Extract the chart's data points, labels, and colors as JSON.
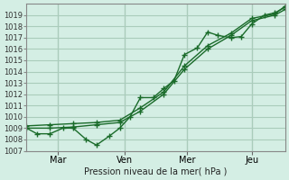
{
  "background_color": "#d4eee4",
  "grid_color": "#aaccbb",
  "line_color": "#1a6b2a",
  "ylabel": "Pression niveau de la mer( hPa )",
  "ylim": [
    1007,
    1020
  ],
  "yticks": [
    1007,
    1008,
    1009,
    1010,
    1011,
    1012,
    1013,
    1014,
    1015,
    1016,
    1017,
    1018,
    1019
  ],
  "xtick_labels": [
    "Mar",
    "Ven",
    "Mer",
    "Jeu"
  ],
  "xtick_positions": [
    0.12,
    0.38,
    0.62,
    0.87
  ],
  "series1_x": [
    0.0,
    0.04,
    0.09,
    0.14,
    0.18,
    0.23,
    0.27,
    0.32,
    0.36,
    0.4,
    0.44,
    0.49,
    0.53,
    0.57,
    0.61,
    0.66,
    0.7,
    0.74,
    0.79,
    0.83,
    0.87,
    0.92,
    0.96,
    1.0
  ],
  "series1_y": [
    1009.0,
    1008.5,
    1008.5,
    1009.0,
    1009.0,
    1008.0,
    1007.5,
    1008.3,
    1009.0,
    1010.0,
    1011.7,
    1011.7,
    1012.5,
    1013.2,
    1015.5,
    1016.1,
    1017.5,
    1017.2,
    1017.0,
    1017.1,
    1018.2,
    1019.0,
    1019.2,
    1019.7
  ],
  "series2_x": [
    0.0,
    0.09,
    0.18,
    0.27,
    0.36,
    0.44,
    0.53,
    0.61,
    0.7,
    0.79,
    0.87,
    0.96,
    1.0
  ],
  "series2_y": [
    1009.0,
    1009.0,
    1009.1,
    1009.3,
    1009.5,
    1010.5,
    1012.0,
    1014.2,
    1016.0,
    1017.2,
    1018.5,
    1019.0,
    1019.5
  ],
  "series3_x": [
    0.0,
    0.09,
    0.18,
    0.27,
    0.36,
    0.44,
    0.53,
    0.61,
    0.7,
    0.79,
    0.87,
    0.96,
    1.0
  ],
  "series3_y": [
    1009.2,
    1009.3,
    1009.4,
    1009.5,
    1009.7,
    1010.8,
    1012.2,
    1014.5,
    1016.3,
    1017.4,
    1018.7,
    1019.1,
    1019.8
  ]
}
